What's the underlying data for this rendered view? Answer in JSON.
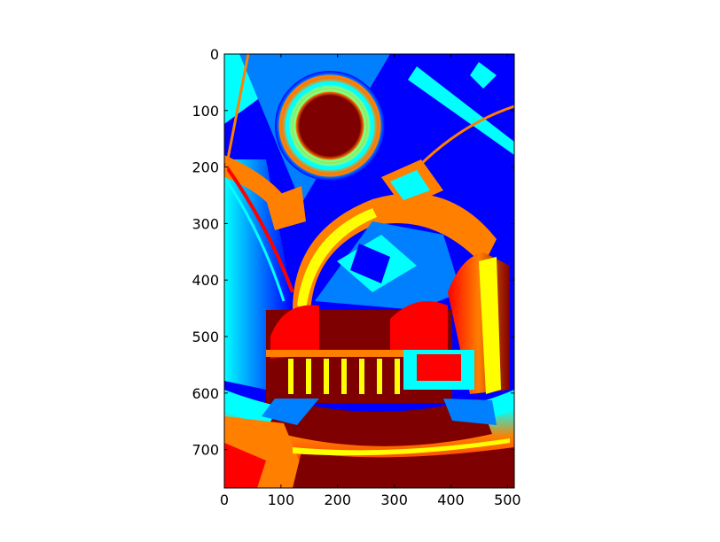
{
  "chart_data": {
    "type": "heatmap",
    "title": "",
    "xlabel": "",
    "ylabel": "",
    "colormap": "jet",
    "colormap_stops": [
      "#00007f",
      "#0000ff",
      "#007fff",
      "#00ffff",
      "#7fff7f",
      "#ffff00",
      "#ff7f00",
      "#ff0000",
      "#7f0000"
    ],
    "image_size": {
      "columns": 512,
      "rows": 768
    },
    "xlim": [
      0,
      512
    ],
    "ylim": [
      768,
      0
    ],
    "x_ticks": [
      0,
      100,
      200,
      300,
      400,
      500
    ],
    "y_ticks": [
      0,
      100,
      200,
      300,
      400,
      500,
      600,
      700
    ],
    "x_tick_labels": [
      "0",
      "100",
      "200",
      "300",
      "400",
      "500"
    ],
    "y_tick_labels": [
      "0",
      "100",
      "200",
      "300",
      "400",
      "500",
      "600",
      "700"
    ],
    "grid": false,
    "legend": "none",
    "content": "false-color pseudocolor image of a domed church interior seen through a fisheye lens"
  }
}
